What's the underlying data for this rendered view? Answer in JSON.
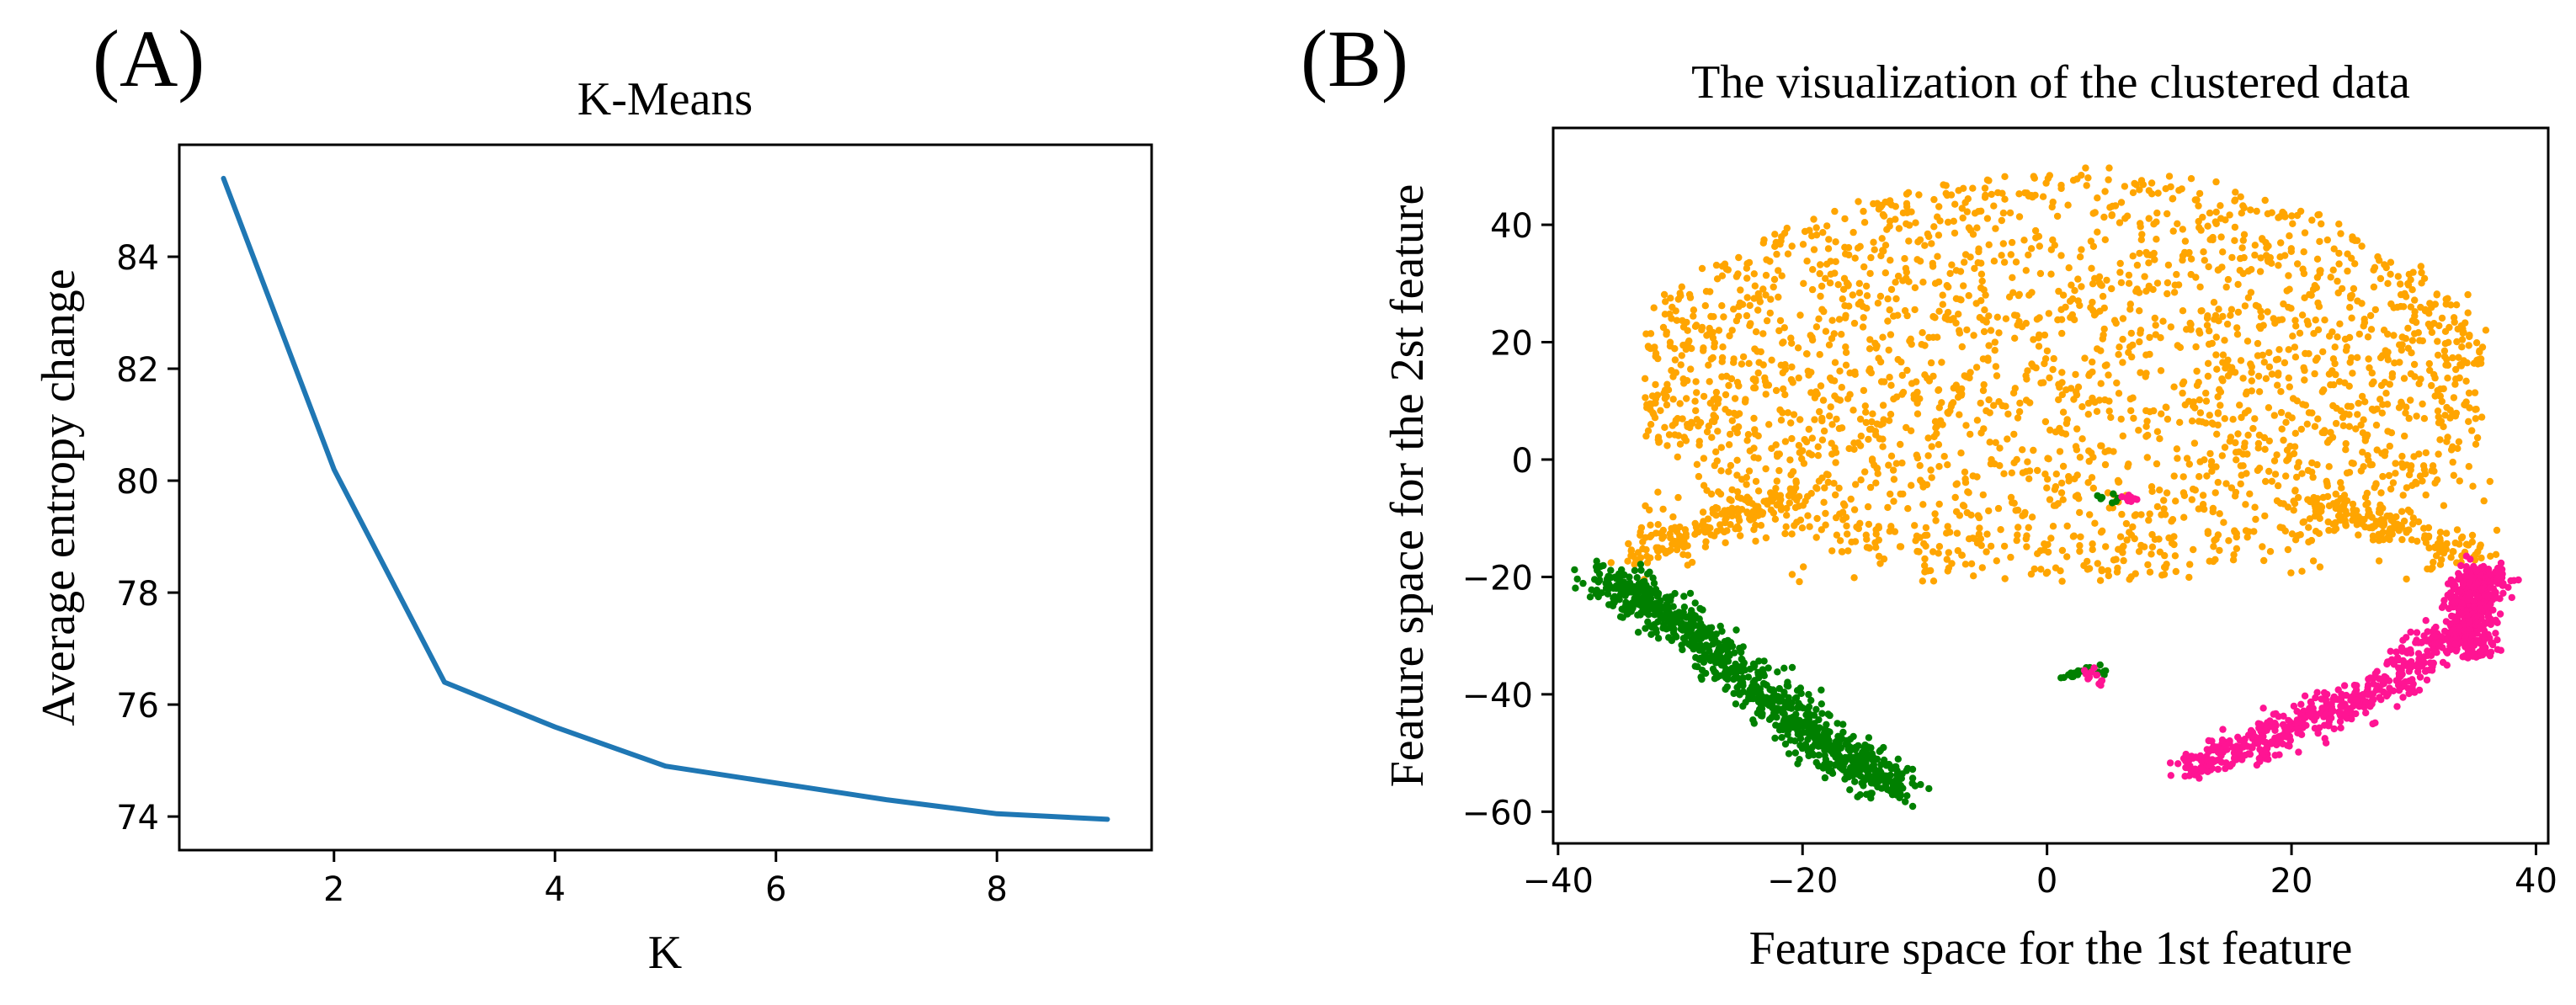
{
  "panels": {
    "a": {
      "label": "(A)"
    },
    "b": {
      "label": "(B)"
    }
  },
  "chart_data": [
    {
      "type": "line",
      "title": "K-Means",
      "xlabel": "K",
      "ylabel": "Average entropy change",
      "xlim": [
        0.6,
        9.4
      ],
      "ylim": [
        73.4,
        86.0
      ],
      "xticks": [
        2,
        4,
        6,
        8
      ],
      "yticks": [
        74,
        76,
        78,
        80,
        82,
        84
      ],
      "grid": false,
      "series": [
        {
          "name": "entropy",
          "color": "#1f77b4",
          "x": [
            1,
            2,
            3,
            4,
            5,
            6,
            7,
            8,
            9
          ],
          "y": [
            85.4,
            80.2,
            76.4,
            75.6,
            74.9,
            74.6,
            74.3,
            74.05,
            73.95
          ]
        }
      ]
    },
    {
      "type": "scatter",
      "title": "The visualization of the clustered data",
      "xlabel": "Feature space for the 1st feature",
      "ylabel": "Feature space for the 2st feature",
      "xlim": [
        -40.4,
        41.0
      ],
      "ylim": [
        -65.4,
        56.5
      ],
      "xticks": [
        -40,
        -20,
        0,
        20,
        40
      ],
      "xtick_labels": [
        "−40",
        "−20",
        "0",
        "20",
        "40"
      ],
      "yticks": [
        -60,
        -40,
        -20,
        0,
        20,
        40
      ],
      "ytick_labels": [
        "−60",
        "−40",
        "−20",
        "0",
        "20",
        "40"
      ],
      "grid": false,
      "clusters": [
        {
          "name": "cluster-orange",
          "color": "#ffa500",
          "approx_points": 2400,
          "shape": "upper dome",
          "center": [
            0,
            15
          ],
          "x_range": [
            -33,
            37
          ],
          "y_range": [
            -22,
            50
          ]
        },
        {
          "name": "cluster-green",
          "color": "#008000",
          "approx_points": 900,
          "shape": "left descending band",
          "path": [
            [
              -36,
              -20
            ],
            [
              -30,
              -28
            ],
            [
              -23,
              -40
            ],
            [
              -17,
              -50
            ],
            [
              -12,
              -56
            ]
          ]
        },
        {
          "name": "cluster-pink",
          "color": "#ff1493",
          "approx_points": 700,
          "shape": "right ascending band",
          "path": [
            [
              12,
              -52
            ],
            [
              20,
              -46
            ],
            [
              28,
              -38
            ],
            [
              34,
              -28
            ],
            [
              36,
              -18
            ]
          ]
        }
      ]
    }
  ]
}
